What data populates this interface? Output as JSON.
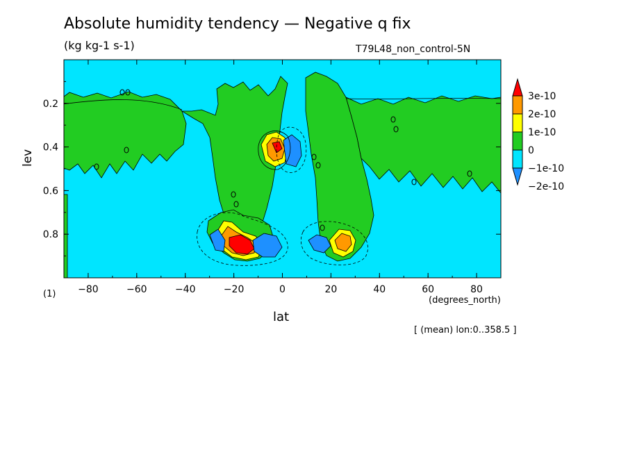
{
  "title": "Absolute humidity tendency — Negative q fix",
  "subtitle": "(kg kg-1 s-1)",
  "run_name": "T79L48_non_control-5N",
  "figure_number": "(1)",
  "x_units": "(degrees_north)",
  "mean_note": "[ (mean) lon:0..358.5 ]",
  "colors": {
    "background_level": "#00e5ff",
    "positive_low": "#22cc22",
    "positive_mid": "#ffff00",
    "positive_high": "#ff9900",
    "positive_max": "#ff0000",
    "negative_low": "#00e5ff",
    "negative_mid": "#1e90ff"
  },
  "chart_data": {
    "type": "heatmap",
    "title": "Absolute humidity tendency — Negative q fix",
    "units": "(kg kg-1 s-1)",
    "xlabel": "lat",
    "xlabel_units": "(degrees_north)",
    "ylabel": "lev",
    "xlim": [
      -90,
      90
    ],
    "ylim": [
      1.0,
      0.0
    ],
    "x_ticks": [
      -80,
      -60,
      -40,
      -20,
      0,
      20,
      40,
      60,
      80
    ],
    "y_ticks": [
      0.2,
      0.4,
      0.6,
      0.8
    ],
    "colorbar": {
      "labels": [
        "3e-10",
        "2e-10",
        "1e-10",
        "0",
        "−1e-10",
        "−2e-10"
      ],
      "levels": [
        -2e-10,
        -1e-10,
        0,
        1e-10,
        2e-10,
        3e-10
      ],
      "colors": [
        "#1e90ff",
        "#00e5ff",
        "#22cc22",
        "#ffff00",
        "#ff9900",
        "#ff0000"
      ]
    },
    "features": [
      {
        "name": "positive maximum",
        "lat": -18,
        "lev": 0.87,
        "value": 3e-10
      },
      {
        "name": "positive maximum",
        "lat": -2,
        "lev": 0.4,
        "value": 3e-10
      },
      {
        "name": "positive maximum",
        "lat": 26,
        "lev": 0.86,
        "value": 2e-10
      },
      {
        "name": "negative minimum",
        "lat": -6,
        "lev": 0.87,
        "value": -2e-10
      },
      {
        "name": "negative minimum",
        "lat": 4,
        "lev": 0.42,
        "value": -2e-10
      },
      {
        "name": "negative minimum",
        "lat": 15,
        "lev": 0.86,
        "value": -2e-10
      }
    ],
    "contour_label": "0"
  }
}
